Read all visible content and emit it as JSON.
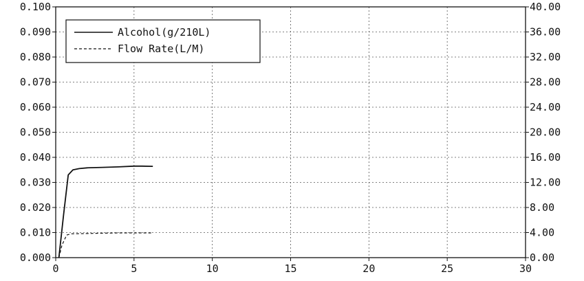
{
  "chart_data": {
    "type": "line",
    "title": "",
    "xlabel": "",
    "ylabel": "",
    "y2label": "",
    "xlim": [
      0,
      30
    ],
    "ylim": [
      0,
      0.1
    ],
    "y2lim": [
      0,
      40
    ],
    "x_ticks": [
      "0",
      "5",
      "10",
      "15",
      "20",
      "25",
      "30"
    ],
    "x_tick_values": [
      0,
      5,
      10,
      15,
      20,
      25,
      30
    ],
    "y_ticks": [
      "0.000",
      "0.010",
      "0.020",
      "0.030",
      "0.040",
      "0.050",
      "0.060",
      "0.070",
      "0.080",
      "0.090",
      "0.100"
    ],
    "y_tick_values": [
      0,
      0.01,
      0.02,
      0.03,
      0.04,
      0.05,
      0.06,
      0.07,
      0.08,
      0.09,
      0.1
    ],
    "y2_ticks": [
      "0.00",
      "4.00",
      "8.00",
      "12.00",
      "16.00",
      "20.00",
      "24.00",
      "28.00",
      "32.00",
      "36.00",
      "40.00"
    ],
    "y2_tick_values": [
      0,
      4,
      8,
      12,
      16,
      20,
      24,
      28,
      32,
      36,
      40
    ],
    "grid": true,
    "legend_position": "top-left",
    "series": [
      {
        "name": "Alcohol(g/210L)",
        "axis": "left",
        "style": "solid",
        "x": [
          0.2,
          0.5,
          0.8,
          1.1,
          1.5,
          2.0,
          3.0,
          4.0,
          5.0,
          5.5,
          6.2
        ],
        "y": [
          0.0,
          0.017,
          0.033,
          0.035,
          0.0355,
          0.0358,
          0.036,
          0.0362,
          0.0365,
          0.0365,
          0.0364
        ]
      },
      {
        "name": "Flow Rate(L/M)",
        "axis": "right",
        "style": "dashed",
        "x": [
          0.2,
          0.4,
          0.7,
          1.0,
          2.0,
          3.0,
          4.0,
          5.0,
          6.2
        ],
        "y": [
          0.0,
          2.0,
          3.6,
          3.8,
          3.85,
          3.9,
          3.95,
          3.95,
          3.95
        ]
      }
    ]
  }
}
